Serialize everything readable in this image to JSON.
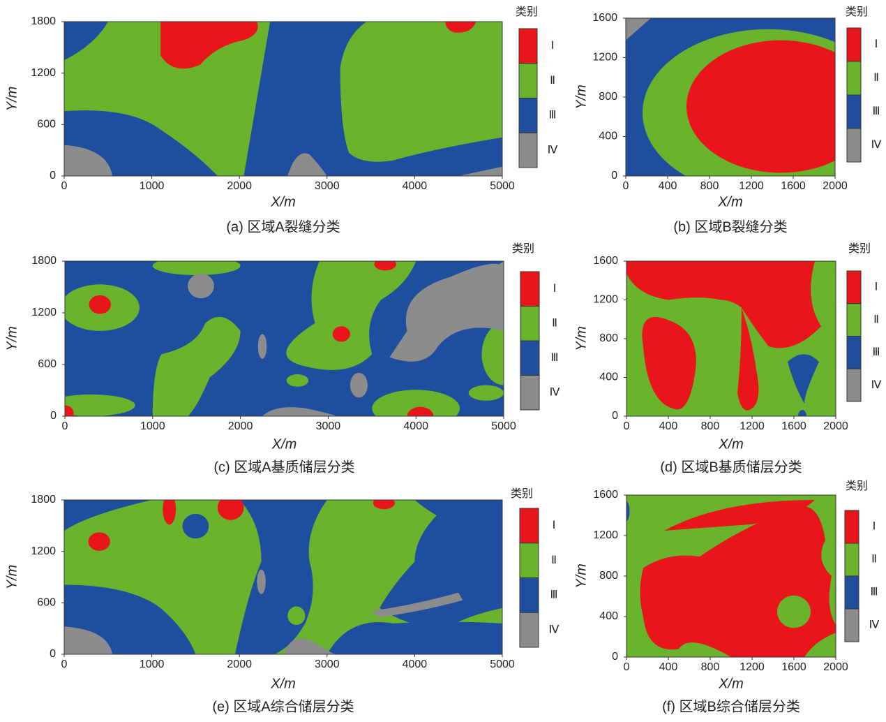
{
  "chart_data": [
    {
      "type": "classmap",
      "caption": "(a) 区域A裂缝分类",
      "xlabel": "X/m",
      "ylabel": "Y/m",
      "legend_title": "类别",
      "classes": [
        {
          "name": "Ⅰ",
          "color": "#e8161b"
        },
        {
          "name": "Ⅱ",
          "color": "#6ab42d"
        },
        {
          "name": "Ⅲ",
          "color": "#1f4e9f"
        },
        {
          "name": "Ⅳ",
          "color": "#8c8c8c"
        }
      ],
      "xlim": [
        0,
        5000
      ],
      "xticks": [
        0,
        1000,
        2000,
        3000,
        4000,
        5000
      ],
      "ylim": [
        0,
        1800
      ],
      "yticks": [
        0,
        600,
        1200,
        1800
      ]
    },
    {
      "type": "classmap",
      "caption": "(b) 区域B裂缝分类",
      "xlabel": "X/m",
      "ylabel": "Y/m",
      "legend_title": "类别",
      "classes": [
        {
          "name": "Ⅰ",
          "color": "#e8161b"
        },
        {
          "name": "Ⅱ",
          "color": "#6ab42d"
        },
        {
          "name": "Ⅲ",
          "color": "#1f4e9f"
        },
        {
          "name": "Ⅳ",
          "color": "#8c8c8c"
        }
      ],
      "xlim": [
        0,
        2000
      ],
      "xticks": [
        0,
        400,
        800,
        1200,
        1600,
        2000
      ],
      "ylim": [
        0,
        1600
      ],
      "yticks": [
        0,
        400,
        800,
        1200,
        1600
      ]
    },
    {
      "type": "classmap",
      "caption": "(c) 区域A基质储层分类",
      "xlabel": "X/m",
      "ylabel": "Y/m",
      "legend_title": "类别",
      "classes": [
        {
          "name": "Ⅰ",
          "color": "#e8161b"
        },
        {
          "name": "Ⅱ",
          "color": "#6ab42d"
        },
        {
          "name": "Ⅲ",
          "color": "#1f4e9f"
        },
        {
          "name": "Ⅳ",
          "color": "#8c8c8c"
        }
      ],
      "xlim": [
        0,
        5000
      ],
      "xticks": [
        0,
        1000,
        2000,
        3000,
        4000,
        5000
      ],
      "ylim": [
        0,
        1800
      ],
      "yticks": [
        0,
        600,
        1200,
        1800
      ]
    },
    {
      "type": "classmap",
      "caption": "(d) 区域B基质储层分类",
      "xlabel": "X/m",
      "ylabel": "Y/m",
      "legend_title": "类别",
      "classes": [
        {
          "name": "Ⅰ",
          "color": "#e8161b"
        },
        {
          "name": "Ⅱ",
          "color": "#6ab42d"
        },
        {
          "name": "Ⅲ",
          "color": "#1f4e9f"
        },
        {
          "name": "Ⅳ",
          "color": "#8c8c8c"
        }
      ],
      "xlim": [
        0,
        2000
      ],
      "xticks": [
        0,
        400,
        800,
        1200,
        1600,
        2000
      ],
      "ylim": [
        0,
        1600
      ],
      "yticks": [
        0,
        400,
        800,
        1200,
        1600
      ]
    },
    {
      "type": "classmap",
      "caption": "(e) 区域A综合储层分类",
      "xlabel": "X/m",
      "ylabel": "Y/m",
      "legend_title": "类别",
      "classes": [
        {
          "name": "Ⅰ",
          "color": "#e8161b"
        },
        {
          "name": "Ⅱ",
          "color": "#6ab42d"
        },
        {
          "name": "Ⅲ",
          "color": "#1f4e9f"
        },
        {
          "name": "Ⅳ",
          "color": "#8c8c8c"
        }
      ],
      "xlim": [
        0,
        5000
      ],
      "xticks": [
        0,
        1000,
        2000,
        3000,
        4000,
        5000
      ],
      "ylim": [
        0,
        1800
      ],
      "yticks": [
        0,
        600,
        1200,
        1800
      ]
    },
    {
      "type": "classmap",
      "caption": "(f) 区域B综合储层分类",
      "xlabel": "X/m",
      "ylabel": "Y/m",
      "legend_title": "类别",
      "classes": [
        {
          "name": "Ⅰ",
          "color": "#e8161b"
        },
        {
          "name": "Ⅱ",
          "color": "#6ab42d"
        },
        {
          "name": "Ⅲ",
          "color": "#1f4e9f"
        },
        {
          "name": "Ⅳ",
          "color": "#8c8c8c"
        }
      ],
      "xlim": [
        0,
        2000
      ],
      "xticks": [
        0,
        400,
        800,
        1200,
        1600,
        2000
      ],
      "ylim": [
        0,
        1600
      ],
      "yticks": [
        0,
        400,
        800,
        1200,
        1600
      ]
    }
  ]
}
